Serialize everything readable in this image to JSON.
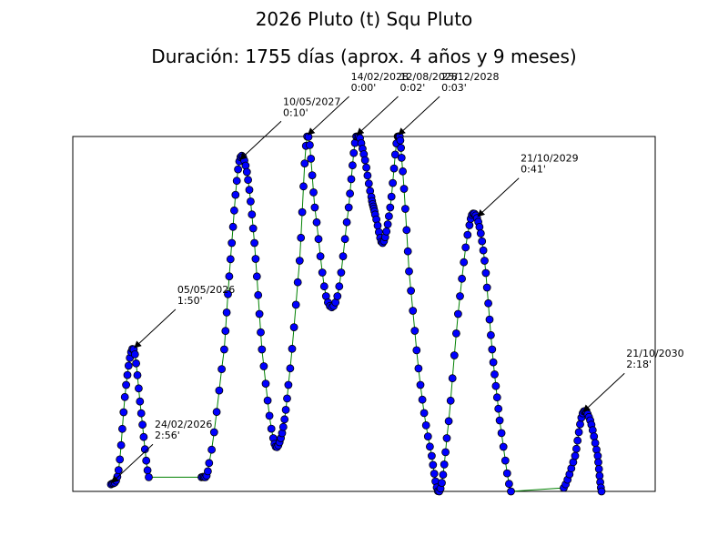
{
  "chart_data": {
    "type": "line",
    "title": "2026 Pluto (t) Squ Pluto",
    "subtitle": "Duración: 1755 días (aprox. 4 años y 9 meses)",
    "xlabel": "",
    "ylabel": "",
    "grid": false,
    "legend": "none",
    "x_unit": "days",
    "x_range": [
      0,
      1755
    ],
    "y_range": [
      0,
      100
    ],
    "colors": {
      "line": "#008000",
      "marker_fill": "#0000ff",
      "marker_edge": "#000000",
      "frame": "#000000"
    },
    "series": [
      {
        "points": [
          [
            0,
            2
          ],
          [
            10,
            6
          ],
          [
            20,
            30
          ],
          [
            30,
            40
          ],
          [
            40,
            22
          ],
          [
            50,
            4
          ],
          [
            120,
            4
          ],
          [
            130,
            8
          ],
          [
            150,
            40
          ],
          [
            160,
            70
          ],
          [
            170,
            93
          ],
          [
            180,
            90
          ],
          [
            190,
            70
          ],
          [
            200,
            40
          ],
          [
            215,
            15
          ],
          [
            225,
            15
          ],
          [
            235,
            30
          ],
          [
            250,
            65
          ],
          [
            260,
            100
          ],
          [
            270,
            80
          ],
          [
            285,
            55
          ],
          [
            300,
            55
          ],
          [
            315,
            80
          ],
          [
            325,
            100
          ],
          [
            335,
            95
          ],
          [
            345,
            83
          ],
          [
            350,
            78
          ],
          [
            360,
            70
          ],
          [
            370,
            80
          ],
          [
            380,
            100
          ],
          [
            385,
            94
          ],
          [
            395,
            62
          ],
          [
            410,
            30
          ],
          [
            425,
            10
          ],
          [
            435,
            0
          ],
          [
            445,
            15
          ],
          [
            460,
            50
          ],
          [
            475,
            75
          ],
          [
            485,
            77
          ],
          [
            495,
            65
          ],
          [
            505,
            40
          ],
          [
            515,
            20
          ],
          [
            530,
            0
          ],
          [
            600,
            1
          ],
          [
            615,
            10
          ],
          [
            625,
            22
          ],
          [
            635,
            20
          ],
          [
            645,
            10
          ],
          [
            650,
            0
          ]
        ]
      }
    ],
    "annotations": [
      {
        "date": "24/02/2026",
        "time": "2:56'",
        "x": 0,
        "y": 2
      },
      {
        "date": "05/05/2026",
        "time": "1:50'",
        "x": 30,
        "y": 40
      },
      {
        "date": "10/05/2027",
        "time": "0:10'",
        "x": 170,
        "y": 93
      },
      {
        "date": "14/02/2028",
        "time": "0:00'",
        "x": 260,
        "y": 100
      },
      {
        "date": "12/08/2028",
        "time": "0:02'",
        "x": 325,
        "y": 100
      },
      {
        "date": "25/12/2028",
        "time": "0:03'",
        "x": 380,
        "y": 100
      },
      {
        "date": "21/10/2029",
        "time": "0:41'",
        "x": 485,
        "y": 77
      },
      {
        "date": "21/10/2030",
        "time": "2:18'",
        "x": 625,
        "y": 22
      }
    ]
  }
}
